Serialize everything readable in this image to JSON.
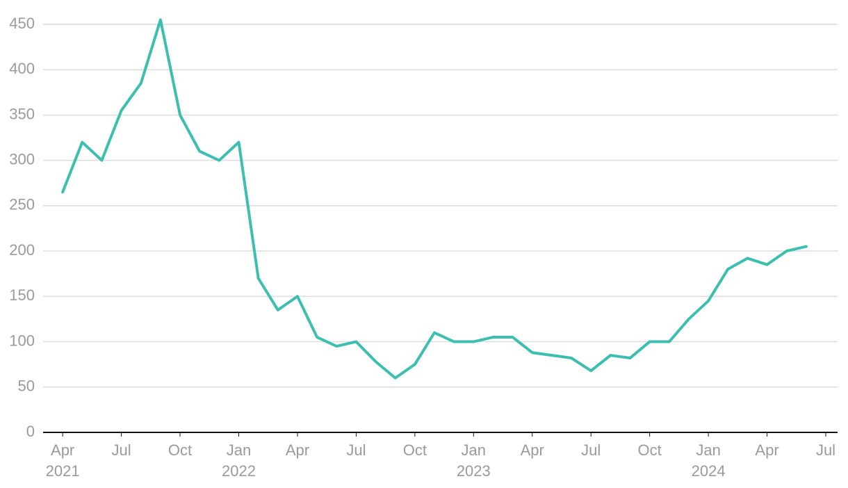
{
  "chart_data": {
    "type": "line",
    "x": [
      "2021-04",
      "2021-05",
      "2021-06",
      "2021-07",
      "2021-08",
      "2021-09",
      "2021-10",
      "2021-11",
      "2021-12",
      "2022-01",
      "2022-02",
      "2022-03",
      "2022-04",
      "2022-05",
      "2022-06",
      "2022-07",
      "2022-08",
      "2022-09",
      "2022-10",
      "2022-11",
      "2022-12",
      "2023-01",
      "2023-02",
      "2023-03",
      "2023-04",
      "2023-05",
      "2023-06",
      "2023-07",
      "2023-08",
      "2023-09",
      "2023-10",
      "2023-11",
      "2023-12",
      "2024-01",
      "2024-02",
      "2024-03",
      "2024-04",
      "2024-05",
      "2024-06"
    ],
    "series": [
      {
        "color": "#3cbfae",
        "values": [
          265,
          320,
          300,
          355,
          385,
          455,
          350,
          310,
          300,
          320,
          170,
          135,
          150,
          105,
          95,
          100,
          78,
          60,
          75,
          110,
          100,
          100,
          105,
          105,
          88,
          85,
          82,
          68,
          85,
          82,
          100,
          100,
          125,
          145,
          180,
          192,
          185,
          200,
          205
        ]
      }
    ],
    "xlim": [
      "2021-03",
      "2024-07"
    ],
    "xticks": [
      {
        "value": "2021-04",
        "label": "Apr",
        "year": "2021"
      },
      {
        "value": "2021-07",
        "label": "Jul"
      },
      {
        "value": "2021-10",
        "label": "Oct"
      },
      {
        "value": "2022-01",
        "label": "Jan",
        "year": "2022"
      },
      {
        "value": "2022-04",
        "label": "Apr"
      },
      {
        "value": "2022-07",
        "label": "Jul"
      },
      {
        "value": "2022-10",
        "label": "Oct"
      },
      {
        "value": "2023-01",
        "label": "Jan",
        "year": "2023"
      },
      {
        "value": "2023-04",
        "label": "Apr"
      },
      {
        "value": "2023-07",
        "label": "Jul"
      },
      {
        "value": "2023-10",
        "label": "Oct"
      },
      {
        "value": "2024-01",
        "label": "Jan",
        "year": "2024"
      },
      {
        "value": "2024-04",
        "label": "Apr"
      },
      {
        "value": "2024-07",
        "label": "Jul"
      }
    ],
    "ylim": [
      0,
      450
    ],
    "yticks": [
      0,
      50,
      100,
      150,
      200,
      250,
      300,
      350,
      400,
      450
    ],
    "grid": true
  }
}
